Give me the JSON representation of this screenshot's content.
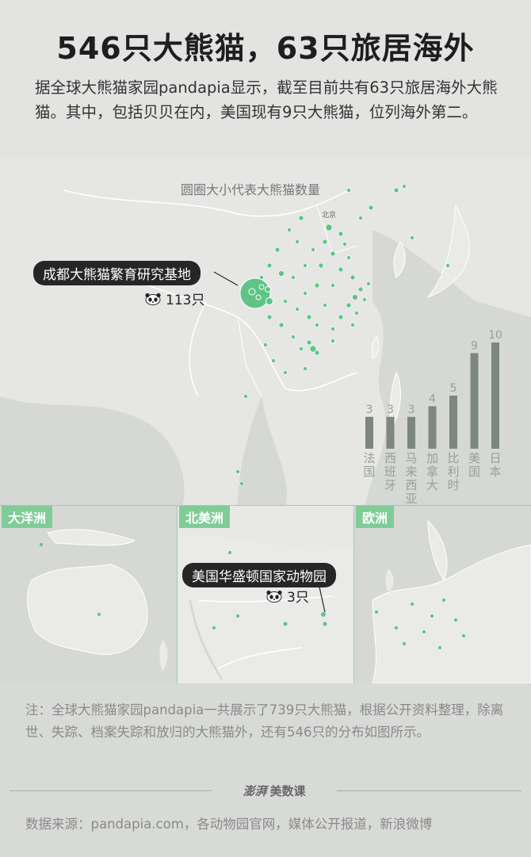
{
  "title": "546只大熊猫，63只旅居海外",
  "intro": "据全球大熊猫家园pandapia显示，截至目前共有63只旅居海外大熊猫。其中，包括贝贝在内，美国现有9只大熊猫，位列海外第二。",
  "legend_note": "圆圈大小代表大熊猫数量",
  "map_label_beijing": "北京",
  "callout_chengdu": {
    "label": "成都大熊猫繁育研究基地",
    "count": "113只"
  },
  "insets": [
    {
      "label": "大洋洲"
    },
    {
      "label": "北美洲"
    },
    {
      "label": "欧洲"
    }
  ],
  "callout_washington": {
    "label": "美国华盛顿国家动物园",
    "count": "3只"
  },
  "chart_data": {
    "type": "bar",
    "categories": [
      "法国",
      "西班牙",
      "马来西亚",
      "加拿大",
      "比利时",
      "美国",
      "日本"
    ],
    "values": [
      3,
      3,
      3,
      4,
      5,
      9,
      10
    ],
    "title": "",
    "xlabel": "",
    "ylabel": "",
    "ylim": [
      0,
      10
    ],
    "bar_color": "#7d8681"
  },
  "note": "注：全球大熊猫家园pandapia一共展示了739只大熊猫，根据公开资料整理，除离世、失踪、档案失踪和放归的大熊猫外，还有546只的分布如图所示。",
  "brand": {
    "logo": "澎湃",
    "name": "美数课"
  },
  "source": "数据来源：pandapia.com，各动物园官网，媒体公开报道，新浪微博",
  "colors": {
    "accent": "#7fcc97",
    "dot": "#5fc486",
    "land": "#e9eae8",
    "water": "#d5d7d4"
  }
}
